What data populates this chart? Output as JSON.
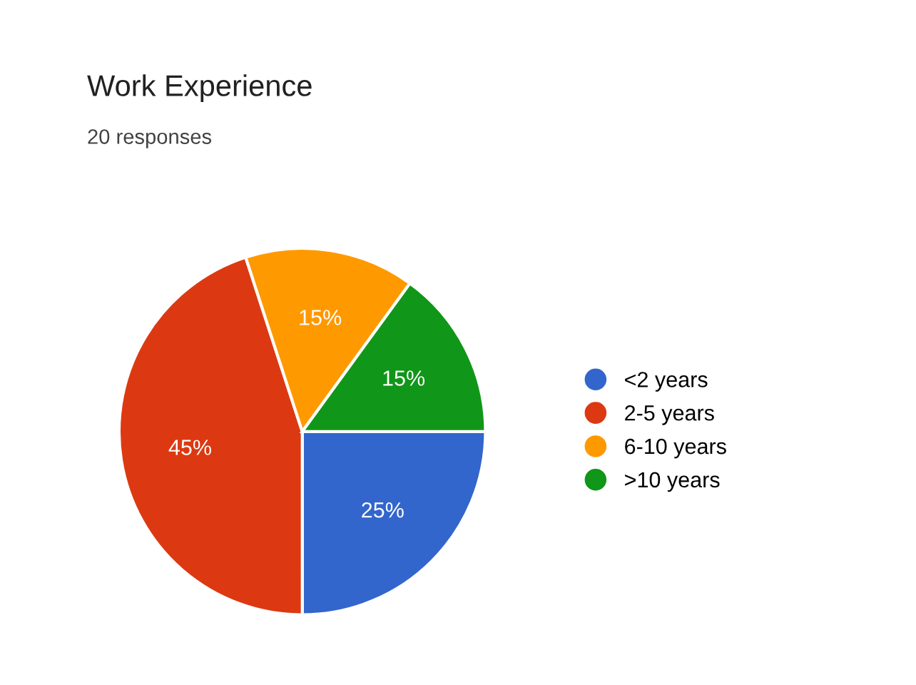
{
  "chart_data": {
    "type": "pie",
    "title": "Work Experience",
    "subtitle": "20 responses",
    "categories": [
      "<2 years",
      "2-5 years",
      "6-10 years",
      ">10 years"
    ],
    "values": [
      25,
      45,
      15,
      15
    ],
    "colors": [
      "#3366cc",
      "#dc3912",
      "#ff9900",
      "#109618"
    ],
    "value_labels": [
      "25%",
      "45%",
      "15%",
      "15%"
    ],
    "legend": "right"
  }
}
